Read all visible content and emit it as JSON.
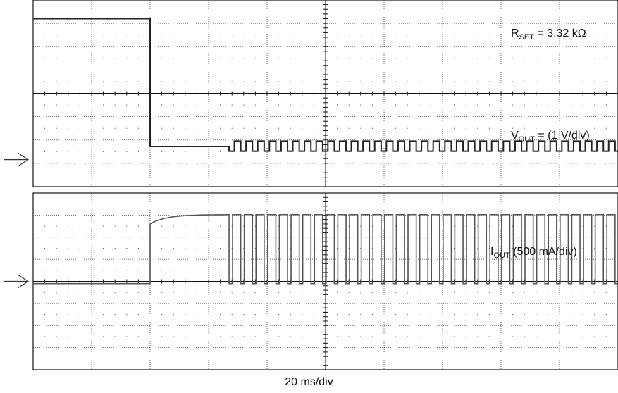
{
  "chart_data": [
    {
      "type": "line",
      "panel": "top",
      "annotations": {
        "rset": {
          "main": "R",
          "sub": "SET",
          "rest": " = 3.32 kΩ"
        },
        "vout": {
          "main": "V",
          "sub": "OUT",
          "rest": " = (1 V/div)"
        }
      },
      "divisions": {
        "x": 10,
        "y": 8
      },
      "units_per_div": {
        "x": 20,
        "y": 1
      },
      "ground_marker_y": 0,
      "series": [
        {
          "color": "#222222",
          "segments": [
            {
              "type": "level",
              "x0": 0,
              "x1": 2,
              "y": 5.8
            },
            {
              "type": "level",
              "x0": 2,
              "x1": 3.35,
              "y": 0.32
            },
            {
              "type": "square",
              "x0": 3.35,
              "x1": 10,
              "low": 0.12,
              "high": 0.55,
              "period": 0.2,
              "duty": 0.55
            }
          ]
        }
      ]
    },
    {
      "type": "line",
      "panel": "bottom",
      "annotations": {
        "iout": {
          "main": "I",
          "sub": "OUT",
          "rest": " (500 mA/div)"
        }
      },
      "divisions": {
        "x": 10,
        "y": 8
      },
      "units_per_div": {
        "x": 20,
        "y": 500
      },
      "ground_marker_y": 0,
      "series": [
        {
          "color": "#555555",
          "segments": [
            {
              "type": "level",
              "x0": 0,
              "x1": 2,
              "y": -0.1
            },
            {
              "type": "rise",
              "x0": 2,
              "x1": 3.35,
              "y0": 2.6,
              "y1": 3.02
            },
            {
              "type": "square",
              "x0": 3.35,
              "x1": 10,
              "low": -0.1,
              "high": 3.02,
              "period": 0.2,
              "duty": 0.7
            }
          ]
        }
      ]
    }
  ],
  "timebase": {
    "label": "20 ms/div"
  }
}
